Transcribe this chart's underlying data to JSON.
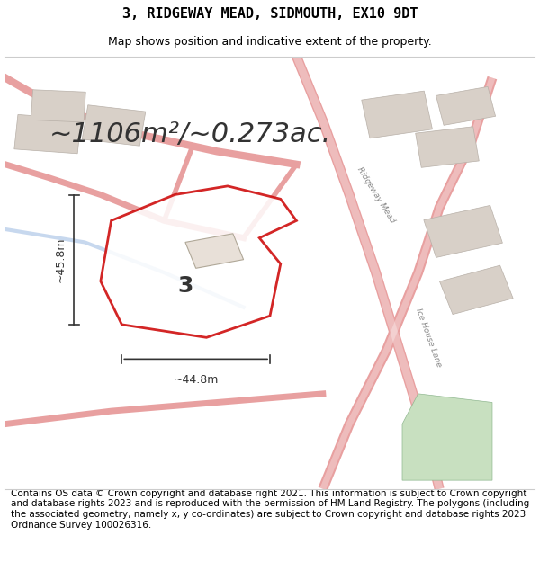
{
  "title": "3, RIDGEWAY MEAD, SIDMOUTH, EX10 9DT",
  "subtitle": "Map shows position and indicative extent of the property.",
  "area_text": "~1106m²/~0.273ac.",
  "plot_number": "3",
  "dim_width": "~44.8m",
  "dim_height": "~45.8m",
  "footer": "Contains OS data © Crown copyright and database right 2021. This information is subject to Crown copyright and database rights 2023 and is reproduced with the permission of HM Land Registry. The polygons (including the associated geometry, namely x, y co-ordinates) are subject to Crown copyright and database rights 2023 Ordnance Survey 100026316.",
  "bg_color": "#f0eeec",
  "map_bg": "#f5f3f0",
  "plot_outline_color": "#cc0000",
  "road_color_main": "#e8a0a0",
  "road_color_light": "#f0c0c0",
  "building_color": "#d8d0c8",
  "building_outline": "#b8b0a8",
  "green_area": "#c8e0c0",
  "title_fontsize": 11,
  "subtitle_fontsize": 9,
  "area_fontsize": 22,
  "footer_fontsize": 7.5
}
